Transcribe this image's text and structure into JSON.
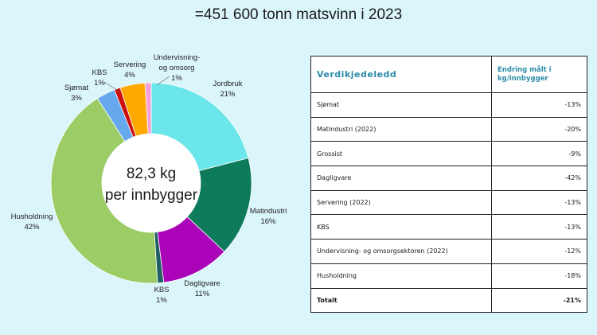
{
  "header": {
    "title": "=451 600 tonn matsvinn i 2023"
  },
  "chart_data": {
    "type": "pie",
    "variant": "donut",
    "center_text": [
      "82,3 kg",
      "per innbygger"
    ],
    "slices": [
      {
        "name": "Jordbruk",
        "value": 21,
        "label": "21%",
        "color": "#6be6ea"
      },
      {
        "name": "Matindustri",
        "value": 16,
        "label": "16%",
        "color": "#0d7a5c"
      },
      {
        "name": "Dagligvare",
        "value": 11,
        "label": "11%",
        "color": "#ab03b7"
      },
      {
        "name": "KBS",
        "value": 1,
        "label": "1%",
        "color": "#1f5f63"
      },
      {
        "name": "Husholdning",
        "value": 42,
        "label": "42%",
        "color": "#9ccc65"
      },
      {
        "name": "Sjømat",
        "value": 3,
        "label": "3%",
        "color": "#66a8ee"
      },
      {
        "name": "KBS",
        "value": 1,
        "label": "1%",
        "color": "#cc1010"
      },
      {
        "name": "Servering",
        "value": 4,
        "label": "4%",
        "color": "#ffa800"
      },
      {
        "name": "Undervisning- og omsorg",
        "name_lines": [
          "Undervisning-",
          "og omsorg"
        ],
        "value": 1,
        "label": "1%",
        "color": "#f6a0d8"
      }
    ]
  },
  "table": {
    "headers": [
      "Verdikjedeledd",
      "Endring målt i kg/innbygger"
    ],
    "rows": [
      {
        "name": "Sjømat",
        "value": "-13%"
      },
      {
        "name": "Matindustri (2022)",
        "value": "-20%"
      },
      {
        "name": "Grossist",
        "value": "-9%"
      },
      {
        "name": "Dagligvare",
        "value": "-42%"
      },
      {
        "name": "Servering (2022)",
        "value": "-13%"
      },
      {
        "name": "KBS",
        "value": "-13%"
      },
      {
        "name": "Undervisning- og omsorgsektoren (2022)",
        "value": "-12%"
      },
      {
        "name": "Husholdning",
        "value": "-18%"
      }
    ],
    "total": {
      "name": "Totalt",
      "value": "-21%"
    }
  }
}
